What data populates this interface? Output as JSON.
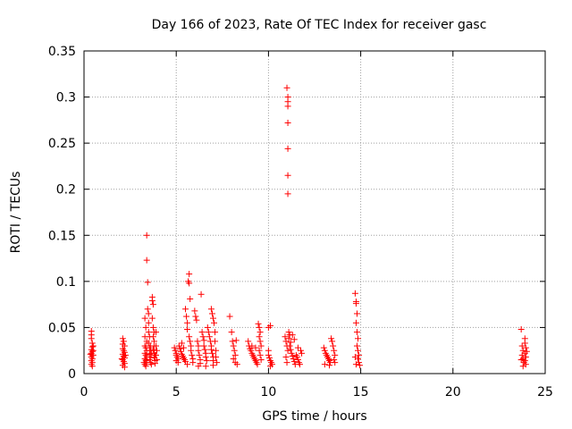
{
  "chart_data": {
    "type": "scatter",
    "title": "Day 166 of 2023, Rate Of TEC Index for receiver gasc",
    "xlabel": "GPS time / hours",
    "ylabel": "ROTI / TECUs",
    "xlim": [
      0,
      25
    ],
    "ylim": [
      0,
      0.35
    ],
    "xticks": [
      "0",
      "5",
      "10",
      "15",
      "20",
      "25"
    ],
    "yticks": [
      "0",
      "0.05",
      "0.1",
      "0.15",
      "0.2",
      "0.25",
      "0.3",
      "0.35"
    ],
    "grid": true,
    "marker": "+",
    "color": "#ff0000",
    "points": [
      [
        0.4,
        0.046
      ],
      [
        0.4,
        0.042
      ],
      [
        0.4,
        0.038
      ],
      [
        0.45,
        0.033
      ],
      [
        0.45,
        0.029
      ],
      [
        0.4,
        0.026
      ],
      [
        0.45,
        0.024
      ],
      [
        0.4,
        0.022
      ],
      [
        0.45,
        0.02
      ],
      [
        0.4,
        0.018
      ],
      [
        0.45,
        0.016
      ],
      [
        0.4,
        0.014
      ],
      [
        0.45,
        0.012
      ],
      [
        0.4,
        0.01
      ],
      [
        0.45,
        0.008
      ],
      [
        0.5,
        0.03
      ],
      [
        0.5,
        0.02
      ],
      [
        0.5,
        0.025
      ],
      [
        0.35,
        0.021
      ],
      [
        2.1,
        0.038
      ],
      [
        2.15,
        0.035
      ],
      [
        2.1,
        0.032
      ],
      [
        2.2,
        0.03
      ],
      [
        2.1,
        0.027
      ],
      [
        2.15,
        0.025
      ],
      [
        2.2,
        0.023
      ],
      [
        2.1,
        0.021
      ],
      [
        2.15,
        0.019
      ],
      [
        2.2,
        0.017
      ],
      [
        2.1,
        0.015
      ],
      [
        2.15,
        0.013
      ],
      [
        2.2,
        0.011
      ],
      [
        2.1,
        0.009
      ],
      [
        2.2,
        0.007
      ],
      [
        2.25,
        0.02
      ],
      [
        2.05,
        0.016
      ],
      [
        3.3,
        0.06
      ],
      [
        3.35,
        0.05
      ],
      [
        3.3,
        0.04
      ],
      [
        3.4,
        0.035
      ],
      [
        3.3,
        0.03
      ],
      [
        3.35,
        0.028
      ],
      [
        3.4,
        0.025
      ],
      [
        3.3,
        0.022
      ],
      [
        3.35,
        0.02
      ],
      [
        3.4,
        0.018
      ],
      [
        3.3,
        0.016
      ],
      [
        3.35,
        0.014
      ],
      [
        3.4,
        0.012
      ],
      [
        3.3,
        0.01
      ],
      [
        3.35,
        0.008
      ],
      [
        3.4,
        0.15
      ],
      [
        3.4,
        0.123
      ],
      [
        3.45,
        0.099
      ],
      [
        3.45,
        0.07
      ],
      [
        3.5,
        0.065
      ],
      [
        3.5,
        0.055
      ],
      [
        3.5,
        0.045
      ],
      [
        3.55,
        0.04
      ],
      [
        3.5,
        0.033
      ],
      [
        3.55,
        0.028
      ],
      [
        3.6,
        0.025
      ],
      [
        3.55,
        0.021
      ],
      [
        3.6,
        0.018
      ],
      [
        3.55,
        0.015
      ],
      [
        3.6,
        0.012
      ],
      [
        3.65,
        0.01
      ],
      [
        3.7,
        0.083
      ],
      [
        3.7,
        0.079
      ],
      [
        3.75,
        0.075
      ],
      [
        3.7,
        0.06
      ],
      [
        3.75,
        0.05
      ],
      [
        3.8,
        0.045
      ],
      [
        3.75,
        0.04
      ],
      [
        3.8,
        0.035
      ],
      [
        3.8,
        0.03
      ],
      [
        3.75,
        0.026
      ],
      [
        3.8,
        0.022
      ],
      [
        3.85,
        0.02
      ],
      [
        3.8,
        0.017
      ],
      [
        3.85,
        0.014
      ],
      [
        3.85,
        0.011
      ],
      [
        3.9,
        0.045
      ],
      [
        3.9,
        0.03
      ],
      [
        3.9,
        0.02
      ],
      [
        3.95,
        0.015
      ],
      [
        3.95,
        0.025
      ],
      [
        3.25,
        0.012
      ],
      [
        3.6,
        0.03
      ],
      [
        3.65,
        0.022
      ],
      [
        4.9,
        0.028
      ],
      [
        4.95,
        0.025
      ],
      [
        5.0,
        0.022
      ],
      [
        5.0,
        0.02
      ],
      [
        5.05,
        0.018
      ],
      [
        5.1,
        0.016
      ],
      [
        5.0,
        0.014
      ],
      [
        5.1,
        0.012
      ],
      [
        5.15,
        0.03
      ],
      [
        5.2,
        0.027
      ],
      [
        5.25,
        0.024
      ],
      [
        5.3,
        0.021
      ],
      [
        5.35,
        0.019
      ],
      [
        5.4,
        0.017
      ],
      [
        5.45,
        0.015
      ],
      [
        5.5,
        0.013
      ],
      [
        5.3,
        0.033
      ],
      [
        5.4,
        0.028
      ],
      [
        5.5,
        0.07
      ],
      [
        5.55,
        0.062
      ],
      [
        5.6,
        0.055
      ],
      [
        5.6,
        0.048
      ],
      [
        5.65,
        0.1
      ],
      [
        5.7,
        0.108
      ],
      [
        5.7,
        0.098
      ],
      [
        5.75,
        0.081
      ],
      [
        5.7,
        0.04
      ],
      [
        5.75,
        0.035
      ],
      [
        5.8,
        0.03
      ],
      [
        5.8,
        0.025
      ],
      [
        5.85,
        0.02
      ],
      [
        5.9,
        0.016
      ],
      [
        5.9,
        0.012
      ],
      [
        5.6,
        0.01
      ],
      [
        6.0,
        0.068
      ],
      [
        6.05,
        0.062
      ],
      [
        6.1,
        0.058
      ],
      [
        6.15,
        0.035
      ],
      [
        6.2,
        0.03
      ],
      [
        6.2,
        0.025
      ],
      [
        6.25,
        0.02
      ],
      [
        6.3,
        0.015
      ],
      [
        6.3,
        0.011
      ],
      [
        6.35,
        0.086
      ],
      [
        6.4,
        0.045
      ],
      [
        6.45,
        0.04
      ],
      [
        6.5,
        0.036
      ],
      [
        6.5,
        0.03
      ],
      [
        6.55,
        0.026
      ],
      [
        6.6,
        0.022
      ],
      [
        6.6,
        0.018
      ],
      [
        6.65,
        0.014
      ],
      [
        6.7,
        0.05
      ],
      [
        6.75,
        0.045
      ],
      [
        6.8,
        0.04
      ],
      [
        6.85,
        0.035
      ],
      [
        6.9,
        0.03
      ],
      [
        6.9,
        0.026
      ],
      [
        6.95,
        0.022
      ],
      [
        7.0,
        0.018
      ],
      [
        7.0,
        0.014
      ],
      [
        6.9,
        0.07
      ],
      [
        6.95,
        0.065
      ],
      [
        7.0,
        0.06
      ],
      [
        7.05,
        0.055
      ],
      [
        7.1,
        0.045
      ],
      [
        7.1,
        0.035
      ],
      [
        7.15,
        0.025
      ],
      [
        7.15,
        0.018
      ],
      [
        7.2,
        0.012
      ],
      [
        6.2,
        0.008
      ],
      [
        6.6,
        0.008
      ],
      [
        7.0,
        0.009
      ],
      [
        7.9,
        0.062
      ],
      [
        8.0,
        0.045
      ],
      [
        8.05,
        0.035
      ],
      [
        8.1,
        0.03
      ],
      [
        8.15,
        0.025
      ],
      [
        8.2,
        0.02
      ],
      [
        8.1,
        0.016
      ],
      [
        8.2,
        0.012
      ],
      [
        8.3,
        0.01
      ],
      [
        8.25,
        0.036
      ],
      [
        8.9,
        0.035
      ],
      [
        8.95,
        0.03
      ],
      [
        9.0,
        0.027
      ],
      [
        9.05,
        0.025
      ],
      [
        9.1,
        0.022
      ],
      [
        9.15,
        0.02
      ],
      [
        9.2,
        0.018
      ],
      [
        9.25,
        0.016
      ],
      [
        9.3,
        0.014
      ],
      [
        9.35,
        0.012
      ],
      [
        9.4,
        0.01
      ],
      [
        9.45,
        0.054
      ],
      [
        9.5,
        0.05
      ],
      [
        9.55,
        0.045
      ],
      [
        9.5,
        0.04
      ],
      [
        9.55,
        0.035
      ],
      [
        9.6,
        0.03
      ],
      [
        9.5,
        0.025
      ],
      [
        9.55,
        0.02
      ],
      [
        9.6,
        0.015
      ],
      [
        9.1,
        0.03
      ],
      [
        9.3,
        0.028
      ],
      [
        10.0,
        0.05
      ],
      [
        10.1,
        0.052
      ],
      [
        10.0,
        0.02
      ],
      [
        10.05,
        0.017
      ],
      [
        10.1,
        0.014
      ],
      [
        10.15,
        0.012
      ],
      [
        10.2,
        0.01
      ],
      [
        10.1,
        0.008
      ],
      [
        10.0,
        0.025
      ],
      [
        10.9,
        0.04
      ],
      [
        10.95,
        0.035
      ],
      [
        11.0,
        0.31
      ],
      [
        11.05,
        0.3
      ],
      [
        11.05,
        0.295
      ],
      [
        11.05,
        0.29
      ],
      [
        11.05,
        0.272
      ],
      [
        11.05,
        0.244
      ],
      [
        11.05,
        0.215
      ],
      [
        11.05,
        0.195
      ],
      [
        11.0,
        0.03
      ],
      [
        11.05,
        0.025
      ],
      [
        11.1,
        0.045
      ],
      [
        11.15,
        0.042
      ],
      [
        11.1,
        0.038
      ],
      [
        11.2,
        0.034
      ],
      [
        11.15,
        0.03
      ],
      [
        11.2,
        0.026
      ],
      [
        11.25,
        0.022
      ],
      [
        11.3,
        0.019
      ],
      [
        11.35,
        0.016
      ],
      [
        11.4,
        0.013
      ],
      [
        11.45,
        0.01
      ],
      [
        11.3,
        0.042
      ],
      [
        11.4,
        0.037
      ],
      [
        11.5,
        0.02
      ],
      [
        11.55,
        0.018
      ],
      [
        11.6,
        0.015
      ],
      [
        11.65,
        0.012
      ],
      [
        11.7,
        0.01
      ],
      [
        11.75,
        0.025
      ],
      [
        11.8,
        0.022
      ],
      [
        11.6,
        0.028
      ],
      [
        10.95,
        0.018
      ],
      [
        11.0,
        0.012
      ],
      [
        13.0,
        0.028
      ],
      [
        13.05,
        0.025
      ],
      [
        13.1,
        0.022
      ],
      [
        13.15,
        0.02
      ],
      [
        13.2,
        0.018
      ],
      [
        13.25,
        0.016
      ],
      [
        13.3,
        0.014
      ],
      [
        13.35,
        0.012
      ],
      [
        13.4,
        0.038
      ],
      [
        13.45,
        0.035
      ],
      [
        13.5,
        0.03
      ],
      [
        13.55,
        0.025
      ],
      [
        13.6,
        0.02
      ],
      [
        13.55,
        0.015
      ],
      [
        13.6,
        0.012
      ],
      [
        13.05,
        0.01
      ],
      [
        13.3,
        0.009
      ],
      [
        14.7,
        0.087
      ],
      [
        14.75,
        0.078
      ],
      [
        14.75,
        0.076
      ],
      [
        14.8,
        0.065
      ],
      [
        14.75,
        0.055
      ],
      [
        14.8,
        0.045
      ],
      [
        14.85,
        0.038
      ],
      [
        14.8,
        0.03
      ],
      [
        14.85,
        0.025
      ],
      [
        14.9,
        0.02
      ],
      [
        14.85,
        0.016
      ],
      [
        14.9,
        0.012
      ],
      [
        14.95,
        0.009
      ],
      [
        14.7,
        0.018
      ],
      [
        14.75,
        0.01
      ],
      [
        23.7,
        0.048
      ],
      [
        23.75,
        0.03
      ],
      [
        23.8,
        0.025
      ],
      [
        23.75,
        0.02
      ],
      [
        23.8,
        0.016
      ],
      [
        23.85,
        0.012
      ],
      [
        23.8,
        0.008
      ],
      [
        23.9,
        0.038
      ],
      [
        23.9,
        0.033
      ],
      [
        23.95,
        0.028
      ],
      [
        23.9,
        0.022
      ],
      [
        23.95,
        0.018
      ],
      [
        23.9,
        0.014
      ],
      [
        23.95,
        0.01
      ],
      [
        24.0,
        0.024
      ],
      [
        23.7,
        0.015
      ]
    ]
  }
}
